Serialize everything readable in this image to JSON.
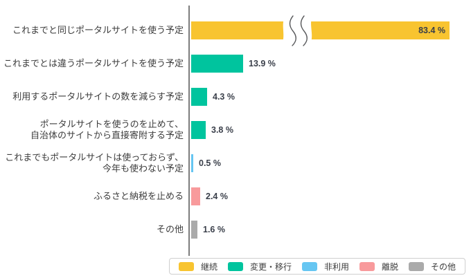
{
  "chart_data": {
    "type": "bar",
    "orientation": "horizontal",
    "unit": "%",
    "title": "",
    "xlabel": "",
    "ylabel": "",
    "grid": false,
    "baseline_color": "#7d7d7d",
    "axis_break": {
      "present": true,
      "on_row": 0,
      "style": "wavy-double-squiggle"
    },
    "rows": [
      {
        "label": "これまでと同じポータルサイトを使う予定",
        "value": 83.4,
        "value_label": "83.4 %",
        "group": "継続",
        "color": "#F8C430",
        "broken": true
      },
      {
        "label": "これまでとは違うポータルサイトを使う予定",
        "value": 13.9,
        "value_label": "13.9 %",
        "group": "変更・移行",
        "color": "#00C49E",
        "broken": false
      },
      {
        "label": "利用するポータルサイトの数を減らす予定",
        "value": 4.3,
        "value_label": "4.3 %",
        "group": "変更・移行",
        "color": "#00C49E",
        "broken": false
      },
      {
        "label": "ポータルサイトを使うのを止めて、\n自治体のサイトから直接寄附する予定",
        "value": 3.8,
        "value_label": "3.8 %",
        "group": "変更・移行",
        "color": "#00C49E",
        "broken": false
      },
      {
        "label": "これまでもポータルサイトは使っておらず、\n今年も使わない予定",
        "value": 0.5,
        "value_label": "0.5 %",
        "group": "非利用",
        "color": "#66C6F2",
        "broken": false
      },
      {
        "label": "ふるさと納税を止める",
        "value": 2.4,
        "value_label": "2.4 %",
        "group": "離脱",
        "color": "#F89A9C",
        "broken": false
      },
      {
        "label": "その他",
        "value": 1.6,
        "value_label": "1.6 %",
        "group": "その他",
        "color": "#AAAAAA",
        "broken": false
      }
    ],
    "legend": [
      {
        "label": "継続",
        "color": "#F8C430"
      },
      {
        "label": "変更・移行",
        "color": "#00C49E"
      },
      {
        "label": "非利用",
        "color": "#66C6F2"
      },
      {
        "label": "離脱",
        "color": "#F89A9C"
      },
      {
        "label": "その他",
        "color": "#AAAAAA"
      }
    ],
    "legend_position": "bottom-right"
  }
}
